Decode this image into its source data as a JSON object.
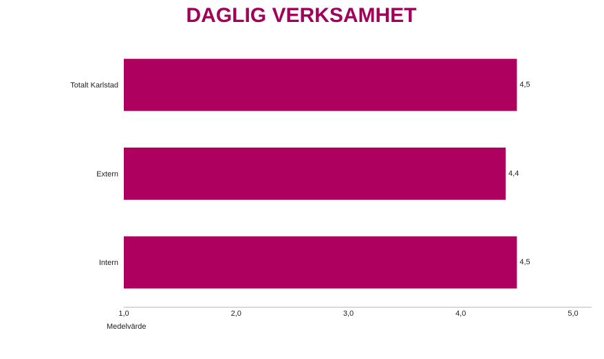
{
  "chart_data": {
    "type": "bar",
    "orientation": "horizontal",
    "title": "DAGLIG VERKSAMHET",
    "categories": [
      "Totalt Karlstad",
      "Extern",
      "Intern"
    ],
    "values": [
      4.5,
      4.4,
      4.5
    ],
    "value_labels": [
      "4,5",
      "4,4",
      "4,5"
    ],
    "color": "#ad005f",
    "title_color": "#a0005a",
    "xlabel": "Medelvärde",
    "xlim": [
      1,
      5
    ],
    "xticks": [
      {
        "value": 1,
        "label": "1,0"
      },
      {
        "value": 2,
        "label": "2,0"
      },
      {
        "value": 3,
        "label": "3,0"
      },
      {
        "value": 4,
        "label": "4,0"
      },
      {
        "value": 5,
        "label": "5,0"
      }
    ],
    "grid": false
  }
}
